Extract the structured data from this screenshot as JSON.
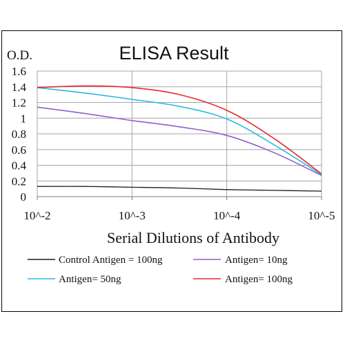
{
  "chart_data": {
    "type": "line",
    "title": "ELISA Result",
    "ylabel": "O.D.",
    "xlabel": "Serial Dilutions  of Antibody",
    "categories": [
      "10^-2",
      "10^-3",
      "10^-4",
      "10^-5"
    ],
    "x": [
      -2,
      -3,
      -4,
      -5
    ],
    "xlim": [
      -2,
      -5
    ],
    "ylim": [
      0,
      1.6
    ],
    "yticks": [
      0,
      0.2,
      0.4,
      0.6,
      0.8,
      1,
      1.2,
      1.4,
      1.6
    ],
    "ytick_labels": [
      "0",
      "0.2",
      "0.4",
      "0.6",
      "0.8",
      "1",
      "1.2",
      "1.4",
      "1.6"
    ],
    "grid": "horizontal",
    "legend_placement": "bottom",
    "series": [
      {
        "name": "Control Antigen = 100ng",
        "color": "#1a1a1a",
        "x": [
          -2,
          -2.5,
          -3,
          -3.5,
          -4,
          -4.5,
          -5
        ],
        "values": [
          0.13,
          0.13,
          0.12,
          0.11,
          0.09,
          0.08,
          0.07
        ]
      },
      {
        "name": "Antigen= 10ng",
        "color": "#8e5fc8",
        "x": [
          -2,
          -2.5,
          -3,
          -3.5,
          -4,
          -4.5,
          -5
        ],
        "values": [
          1.14,
          1.06,
          0.97,
          0.89,
          0.78,
          0.56,
          0.27
        ]
      },
      {
        "name": "Antigen= 50ng",
        "color": "#2ab8e6",
        "x": [
          -2,
          -2.5,
          -3,
          -3.5,
          -4,
          -4.5,
          -5
        ],
        "values": [
          1.39,
          1.32,
          1.24,
          1.15,
          0.99,
          0.66,
          0.28
        ]
      },
      {
        "name": "Antigen= 100ng",
        "color": "#e8262b",
        "x": [
          -2,
          -2.5,
          -3,
          -3.5,
          -4,
          -4.5,
          -5
        ],
        "values": [
          1.39,
          1.41,
          1.39,
          1.3,
          1.1,
          0.74,
          0.29
        ]
      }
    ]
  }
}
